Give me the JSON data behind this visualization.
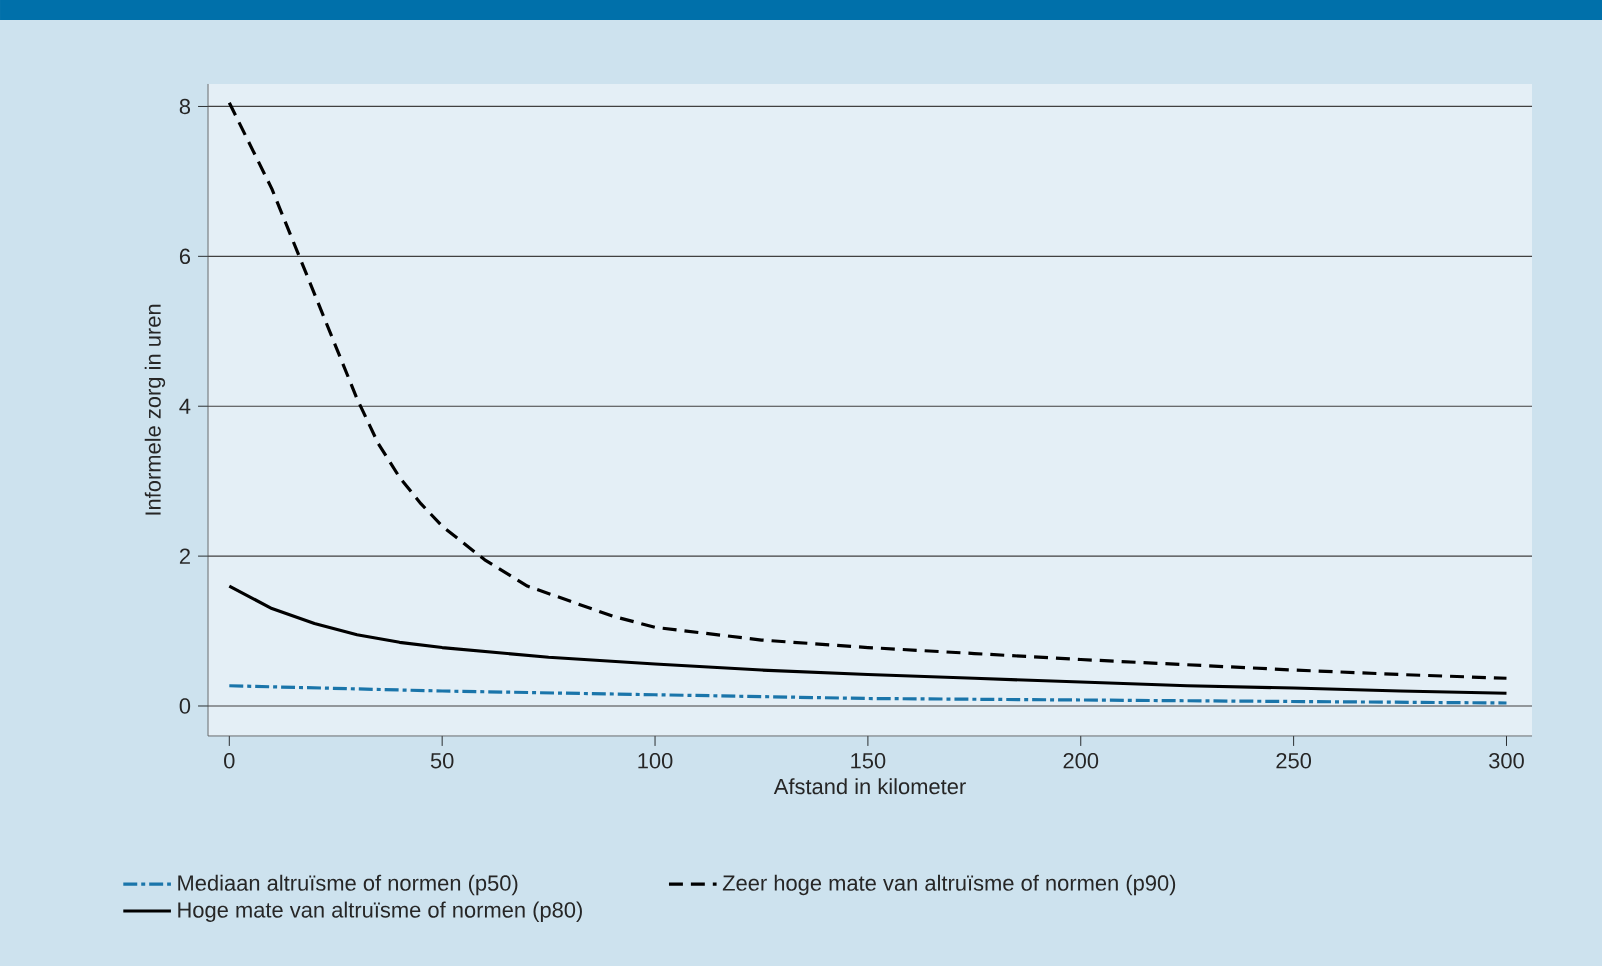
{
  "chart_data": {
    "type": "line",
    "xlabel": "Afstand in kilometer",
    "ylabel": "Informele zorg in uren",
    "xlim": [
      -5,
      306
    ],
    "ylim": [
      -0.4,
      8.3
    ],
    "xticks": [
      0,
      50,
      100,
      150,
      200,
      250,
      300
    ],
    "yticks": [
      0,
      2,
      4,
      6,
      8
    ],
    "grid": "y",
    "legend": "bottom",
    "marker": "none",
    "series": [
      {
        "name": "Mediaan altruïsme of normen (p50)",
        "color": "#1a75aa",
        "line_style": "dashdot",
        "x": [
          0,
          50,
          100,
          150,
          200,
          250,
          300
        ],
        "values": [
          0.27,
          0.2,
          0.15,
          0.1,
          0.08,
          0.06,
          0.04
        ]
      },
      {
        "name": "Zeer hoge mate van altruïsme of normen (p90)",
        "color": "#000000",
        "line_style": "dashed",
        "x": [
          0,
          10,
          15,
          20,
          25,
          30,
          35,
          40,
          45,
          50,
          60,
          70,
          80,
          90,
          100,
          125,
          150,
          175,
          200,
          225,
          250,
          275,
          300
        ],
        "values": [
          8.05,
          6.9,
          6.2,
          5.5,
          4.8,
          4.1,
          3.5,
          3.05,
          2.7,
          2.4,
          1.95,
          1.6,
          1.4,
          1.2,
          1.05,
          0.88,
          0.78,
          0.7,
          0.62,
          0.55,
          0.48,
          0.42,
          0.37
        ]
      },
      {
        "name": "Hoge mate van altruïsme of normen (p80)",
        "color": "#000000",
        "line_style": "solid",
        "x": [
          0,
          10,
          20,
          30,
          40,
          50,
          75,
          100,
          125,
          150,
          175,
          200,
          225,
          250,
          275,
          300
        ],
        "values": [
          1.6,
          1.3,
          1.1,
          0.95,
          0.85,
          0.78,
          0.65,
          0.56,
          0.48,
          0.42,
          0.37,
          0.32,
          0.27,
          0.24,
          0.2,
          0.17
        ]
      }
    ]
  }
}
